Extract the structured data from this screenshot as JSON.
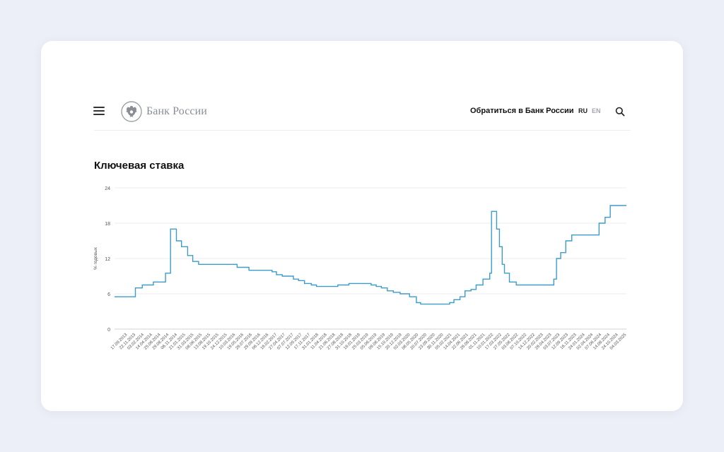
{
  "header": {
    "logo_text": "Банк России",
    "contact_link": "Обратиться в Банк России",
    "lang_ru": "RU",
    "lang_en": "EN"
  },
  "page": {
    "title": "Ключевая ставка"
  },
  "colors": {
    "line": "#3d9cc8",
    "background": "#eceff7",
    "card": "#ffffff"
  },
  "icons": [
    "menu-icon",
    "bank-emblem-icon",
    "search-icon"
  ],
  "chart_data": {
    "type": "line",
    "title": "Ключевая ставка",
    "ylabel": "% годовых",
    "xlabel": "",
    "ylim": [
      0,
      24
    ],
    "yticks": [
      0,
      6,
      12,
      18,
      24
    ],
    "grid": true,
    "x_tick_labels": [
      "17.09.2013",
      "22.11.2013",
      "03.02.2014",
      "14.04.2014",
      "25.06.2014",
      "29.08.2014",
      "06.11.2014",
      "21.01.2015",
      "31.03.2015",
      "08.06.2015",
      "13.08.2015",
      "19.10.2015",
      "24.12.2015",
      "10.03.2016",
      "19.05.2016",
      "26.07.2016",
      "29.09.2016",
      "06.12.2016",
      "16.02.2017",
      "27.04.2017",
      "07.07.2017",
      "12.09.2017",
      "17.11.2017",
      "31.01.2018",
      "11.04.2018",
      "21.06.2018",
      "27.08.2018",
      "31.10.2018",
      "16.01.2019",
      "25.03.2019",
      "05.06.2019",
      "09.08.2019",
      "15.10.2019",
      "20.12.2019",
      "02.03.2020",
      "08.05.2020",
      "20.07.2020",
      "23.09.2020",
      "30.11.2020",
      "05.02.2021",
      "14.04.2021",
      "22.06.2021",
      "26.08.2021",
      "01.11.2021",
      "10.01.2022",
      "17.03.2022",
      "27.05.2022",
      "03.08.2022",
      "07.10.2022",
      "14.12.2022",
      "20.02.2023",
      "28.04.2023",
      "03.07.2023",
      "12.09.2023",
      "16.11.2023",
      "24.01.2024",
      "02.04.2024",
      "07.06.2024",
      "14.08.2024",
      "24.10.2024",
      "04.03.2025"
    ],
    "series": [
      {
        "points": [
          [
            "2013-09-13",
            5.5
          ],
          [
            "2014-03-03",
            7.0
          ],
          [
            "2014-04-28",
            7.5
          ],
          [
            "2014-07-28",
            8.0
          ],
          [
            "2014-11-05",
            9.5
          ],
          [
            "2014-12-16",
            17.0
          ],
          [
            "2015-02-02",
            15.0
          ],
          [
            "2015-03-16",
            14.0
          ],
          [
            "2015-05-05",
            12.5
          ],
          [
            "2015-06-16",
            11.5
          ],
          [
            "2015-08-03",
            11.0
          ],
          [
            "2016-06-14",
            10.5
          ],
          [
            "2016-09-19",
            10.0
          ],
          [
            "2017-03-27",
            9.75
          ],
          [
            "2017-05-02",
            9.25
          ],
          [
            "2017-06-19",
            9.0
          ],
          [
            "2017-09-18",
            8.5
          ],
          [
            "2017-10-30",
            8.25
          ],
          [
            "2017-12-18",
            7.75
          ],
          [
            "2018-02-12",
            7.5
          ],
          [
            "2018-03-26",
            7.25
          ],
          [
            "2018-09-17",
            7.5
          ],
          [
            "2018-12-17",
            7.75
          ],
          [
            "2019-06-17",
            7.5
          ],
          [
            "2019-07-29",
            7.25
          ],
          [
            "2019-09-09",
            7.0
          ],
          [
            "2019-10-28",
            6.5
          ],
          [
            "2019-12-16",
            6.25
          ],
          [
            "2020-02-10",
            6.0
          ],
          [
            "2020-04-27",
            5.5
          ],
          [
            "2020-06-22",
            4.5
          ],
          [
            "2020-07-27",
            4.25
          ],
          [
            "2021-03-22",
            4.5
          ],
          [
            "2021-04-26",
            5.0
          ],
          [
            "2021-06-15",
            5.5
          ],
          [
            "2021-07-26",
            6.5
          ],
          [
            "2021-09-13",
            6.75
          ],
          [
            "2021-10-25",
            7.5
          ],
          [
            "2021-12-20",
            8.5
          ],
          [
            "2022-02-14",
            9.5
          ],
          [
            "2022-02-28",
            20.0
          ],
          [
            "2022-04-11",
            17.0
          ],
          [
            "2022-05-04",
            14.0
          ],
          [
            "2022-05-27",
            11.0
          ],
          [
            "2022-06-14",
            9.5
          ],
          [
            "2022-07-25",
            8.0
          ],
          [
            "2022-09-19",
            7.5
          ],
          [
            "2023-07-24",
            8.5
          ],
          [
            "2023-08-15",
            12.0
          ],
          [
            "2023-09-18",
            13.0
          ],
          [
            "2023-10-30",
            15.0
          ],
          [
            "2023-12-18",
            16.0
          ],
          [
            "2024-07-29",
            18.0
          ],
          [
            "2024-09-16",
            19.0
          ],
          [
            "2024-10-28",
            21.0
          ],
          [
            "2025-03-10",
            21.0
          ]
        ]
      }
    ]
  }
}
